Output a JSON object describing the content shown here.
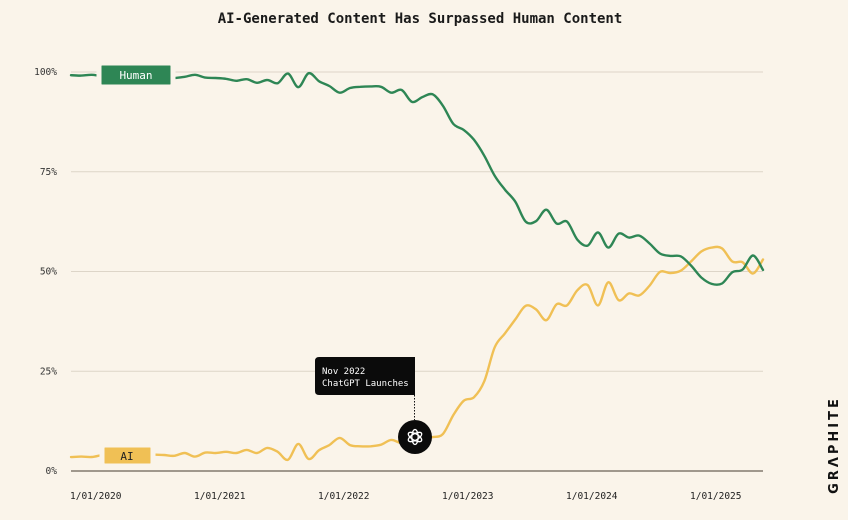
{
  "chart_data": {
    "type": "line",
    "title": "AI-Generated Content Has Surpassed Human Content",
    "xlabel": "",
    "ylabel": "",
    "ylim": [
      0,
      100
    ],
    "grid": true,
    "y_ticks": [
      "0%",
      "25%",
      "50%",
      "75%",
      "100%"
    ],
    "y_tick_values": [
      0,
      25,
      50,
      75,
      100
    ],
    "x_ticks": [
      "1/01/2020",
      "1/01/2021",
      "1/01/2022",
      "1/01/2023",
      "1/01/2024",
      "1/01/2025"
    ],
    "x_tick_values": [
      "2020-01",
      "2021-01",
      "2022-01",
      "2023-01",
      "2024-01",
      "2025-01"
    ],
    "x": [
      "2020-01",
      "2020-02",
      "2020-03",
      "2020-04",
      "2020-05",
      "2020-06",
      "2020-07",
      "2020-08",
      "2020-09",
      "2020-10",
      "2020-11",
      "2020-12",
      "2021-01",
      "2021-02",
      "2021-03",
      "2021-04",
      "2021-05",
      "2021-06",
      "2021-07",
      "2021-08",
      "2021-09",
      "2021-10",
      "2021-11",
      "2021-12",
      "2022-01",
      "2022-02",
      "2022-03",
      "2022-04",
      "2022-05",
      "2022-06",
      "2022-07",
      "2022-08",
      "2022-09",
      "2022-10",
      "2022-11",
      "2022-12",
      "2023-01",
      "2023-02",
      "2023-03",
      "2023-04",
      "2023-05",
      "2023-06",
      "2023-07",
      "2023-08",
      "2023-09",
      "2023-10",
      "2023-11",
      "2023-12",
      "2024-01",
      "2024-02",
      "2024-03",
      "2024-04",
      "2024-05",
      "2024-06",
      "2024-07",
      "2024-08",
      "2024-09",
      "2024-10",
      "2024-11",
      "2024-12",
      "2025-01",
      "2025-02",
      "2025-03",
      "2025-04",
      "2025-05",
      "2025-06",
      "2025-07",
      "2025-08"
    ],
    "series": [
      {
        "name": "Human",
        "color": "#2e8655",
        "values": [
          99.2,
          99.1,
          99.3,
          99,
          99,
          98.8,
          98.6,
          98.6,
          98.6,
          98.6,
          98.5,
          98.8,
          99.3,
          98.6,
          98.5,
          98.3,
          97.8,
          98.2,
          97.3,
          98,
          97.2,
          99.6,
          96.2,
          99.7,
          97.7,
          96.5,
          94.8,
          96,
          96.3,
          96.4,
          96.3,
          94.8,
          95.5,
          92.5,
          93.7,
          94.4,
          91.5,
          87,
          85.5,
          83,
          79,
          74,
          70.5,
          67.5,
          62.5,
          62.6,
          65.5,
          62,
          62.5,
          58,
          56.5,
          59.8,
          56,
          59.5,
          58.5,
          59,
          57,
          54.5,
          53.9,
          53.8,
          51.5,
          48.5,
          46.9,
          47,
          49.8,
          50.5,
          54,
          50.4
        ]
      },
      {
        "name": "AI",
        "color": "#f0c055",
        "values": [
          3.5,
          3.6,
          3.5,
          4,
          4.2,
          4.4,
          4.4,
          4.3,
          4.1,
          4,
          3.8,
          4.5,
          3.6,
          4.6,
          4.5,
          4.8,
          4.5,
          5.3,
          4.5,
          5.8,
          4.8,
          2.8,
          6.8,
          3,
          5.2,
          6.5,
          8.3,
          6.5,
          6.2,
          6.2,
          6.6,
          7.8,
          7,
          7.8,
          8.2,
          8.5,
          9.3,
          14,
          17.6,
          18.5,
          22.5,
          31,
          34.5,
          38,
          41.4,
          40.5,
          37.8,
          41.8,
          41.5,
          45.3,
          46.6,
          41.5,
          47.3,
          42.8,
          44.5,
          44,
          46.5,
          49.9,
          49.6,
          50.2,
          52.5,
          55,
          56,
          55.8,
          52.5,
          52.3,
          49.5,
          53
        ]
      }
    ],
    "annotation": {
      "line1": "Nov 2022",
      "line2": "ChatGPT Launches",
      "at": "2022-11",
      "icon": "openai-logo-icon"
    }
  },
  "logo": "GRAPHITE",
  "colors": {
    "background": "#faf4ea",
    "human": "#2e8655",
    "ai": "#f0c055"
  }
}
